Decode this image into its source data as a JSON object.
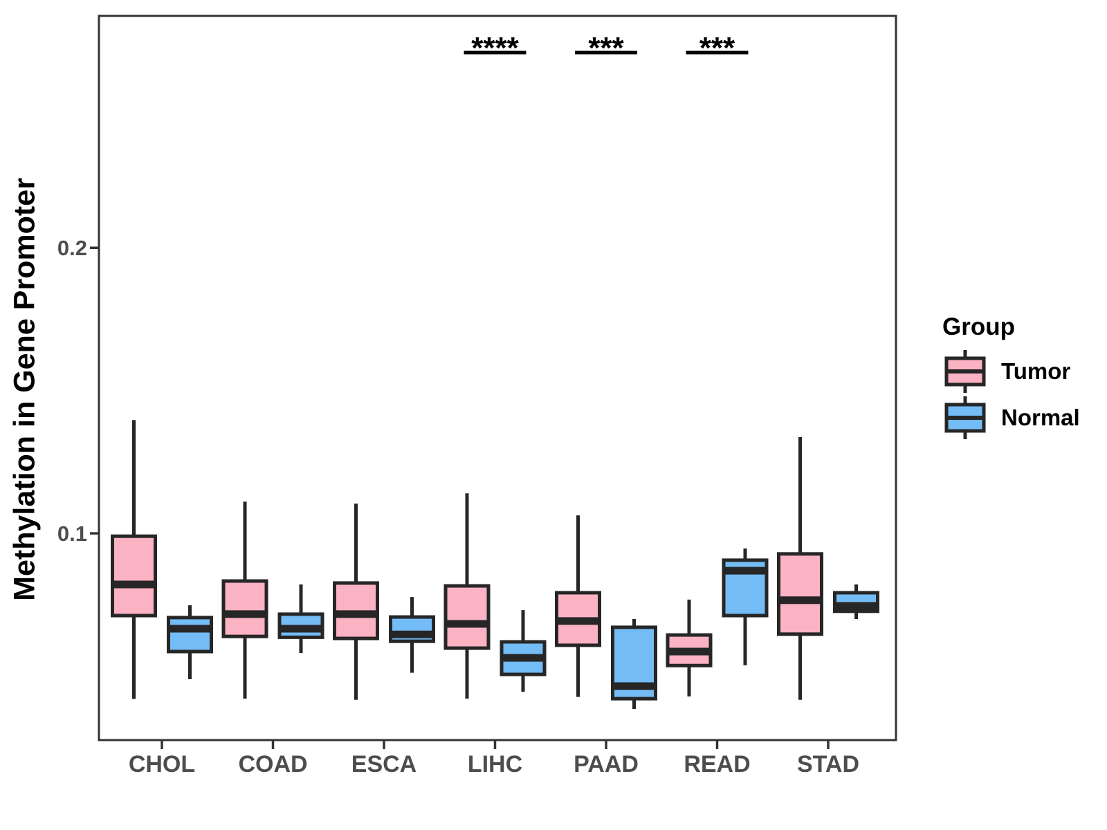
{
  "chart_data": {
    "type": "boxplot",
    "title": "",
    "xlabel": "",
    "ylabel": "Methylation in Gene Promoter",
    "categories": [
      "CHOL",
      "COAD",
      "ESCA",
      "LIHC",
      "PAAD",
      "READ",
      "STAD"
    ],
    "groups": [
      "Tumor",
      "Normal"
    ],
    "y_ticks": [
      0.1,
      0.2
    ],
    "y_domain": [
      0.0276,
      0.2812
    ],
    "grid": false,
    "legend_position": "right",
    "legend": {
      "title": "Group"
    },
    "series": [
      {
        "name": "Tumor",
        "color": "#FBB2C3",
        "boxes": [
          {
            "category": "CHOL",
            "whislo": 0.042,
            "q1": 0.0712,
            "med": 0.0821,
            "q3": 0.099,
            "whishi": 0.1397
          },
          {
            "category": "COAD",
            "whislo": 0.0421,
            "q1": 0.0639,
            "med": 0.0717,
            "q3": 0.0833,
            "whishi": 0.1111
          },
          {
            "category": "ESCA",
            "whislo": 0.0417,
            "q1": 0.0632,
            "med": 0.0717,
            "q3": 0.0826,
            "whishi": 0.1104
          },
          {
            "category": "LIHC",
            "whislo": 0.0421,
            "q1": 0.0598,
            "med": 0.0683,
            "q3": 0.0816,
            "whishi": 0.114
          },
          {
            "category": "PAAD",
            "whislo": 0.0427,
            "q1": 0.0608,
            "med": 0.0693,
            "q3": 0.0792,
            "whishi": 0.1063
          },
          {
            "category": "READ",
            "whislo": 0.0429,
            "q1": 0.0537,
            "med": 0.0586,
            "q3": 0.0644,
            "whishi": 0.0768
          },
          {
            "category": "STAD",
            "whislo": 0.0417,
            "q1": 0.0647,
            "med": 0.0766,
            "q3": 0.0928,
            "whishi": 0.1337
          }
        ]
      },
      {
        "name": "Normal",
        "color": "#74BCF6",
        "boxes": [
          {
            "category": "CHOL",
            "whislo": 0.0489,
            "q1": 0.0586,
            "med": 0.0666,
            "q3": 0.0705,
            "whishi": 0.0748
          },
          {
            "category": "COAD",
            "whislo": 0.0581,
            "q1": 0.0636,
            "med": 0.0666,
            "q3": 0.0717,
            "whishi": 0.0821
          },
          {
            "category": "ESCA",
            "whislo": 0.0512,
            "q1": 0.0622,
            "med": 0.0646,
            "q3": 0.0707,
            "whishi": 0.0777
          },
          {
            "category": "LIHC",
            "whislo": 0.0445,
            "q1": 0.0506,
            "med": 0.0564,
            "q3": 0.062,
            "whishi": 0.0731
          },
          {
            "category": "PAAD",
            "whislo": 0.0385,
            "q1": 0.0421,
            "med": 0.0465,
            "q3": 0.0671,
            "whishi": 0.07
          },
          {
            "category": "READ",
            "whislo": 0.0538,
            "q1": 0.0712,
            "med": 0.0869,
            "q3": 0.0906,
            "whishi": 0.0947
          },
          {
            "category": "STAD",
            "whislo": 0.07,
            "q1": 0.0727,
            "med": 0.0746,
            "q3": 0.0792,
            "whishi": 0.0821
          }
        ]
      }
    ],
    "annotations": [
      {
        "category": "LIHC",
        "label": "****"
      },
      {
        "category": "PAAD",
        "label": "***"
      },
      {
        "category": "READ",
        "label": "***"
      }
    ]
  },
  "colors": {
    "tumor_fill": "#FBB2C3",
    "normal_fill": "#74BCF6",
    "box_stroke": "#262626",
    "panel_border": "#333333",
    "tick_mark": "#333333",
    "axis_text": "#4D4D4D",
    "annotation": "#000000"
  }
}
